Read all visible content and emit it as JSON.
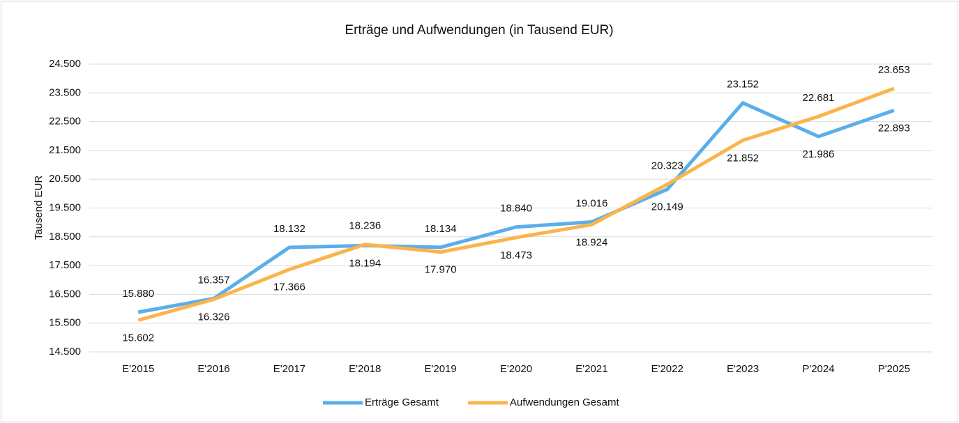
{
  "chart_data": {
    "type": "line",
    "title": "Erträge und Aufwendungen (in Tausend EUR)",
    "y_label": "Tausend EUR",
    "categories": [
      "E'2015",
      "E'2016",
      "E'2017",
      "E'2018",
      "E'2019",
      "E'2020",
      "E'2021",
      "E'2022",
      "E'2023",
      "P'2024",
      "P'2025"
    ],
    "series": [
      {
        "name": "Erträge Gesamt",
        "color": "#5aaeea",
        "values": [
          15880,
          16357,
          18132,
          18194,
          18134,
          18840,
          19016,
          20149,
          23152,
          21986,
          22893
        ],
        "value_labels": [
          "15.880",
          "16.357",
          "18.132",
          "18.194",
          "18.134",
          "18.840",
          "19.016",
          "20.149",
          "23.152",
          "21.986",
          "22.893"
        ]
      },
      {
        "name": "Aufwendungen Gesamt",
        "color": "#fbb44c",
        "values": [
          15602,
          16326,
          17366,
          18236,
          17970,
          18473,
          18924,
          20323,
          21852,
          22681,
          23653
        ],
        "value_labels": [
          "15.602",
          "16.326",
          "17.366",
          "18.236",
          "17.970",
          "18.473",
          "18.924",
          "20.323",
          "21.852",
          "22.681",
          "23.653"
        ]
      }
    ],
    "ylim": [
      14500,
      24500
    ],
    "yticks": [
      {
        "value": 14500,
        "label": "14.500"
      },
      {
        "value": 15500,
        "label": "15.500"
      },
      {
        "value": 16500,
        "label": "16.500"
      },
      {
        "value": 17500,
        "label": "17.500"
      },
      {
        "value": 18500,
        "label": "18.500"
      },
      {
        "value": 19500,
        "label": "19.500"
      },
      {
        "value": 20500,
        "label": "20.500"
      },
      {
        "value": 21500,
        "label": "21.500"
      },
      {
        "value": 22500,
        "label": "22.500"
      },
      {
        "value": 23500,
        "label": "23.500"
      },
      {
        "value": 24500,
        "label": "24.500"
      }
    ],
    "grid": true,
    "legend": "bottom"
  }
}
